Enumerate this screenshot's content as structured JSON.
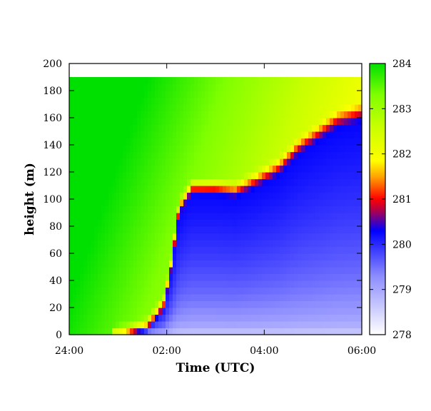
{
  "chart_data": {
    "type": "heatmap",
    "title": "",
    "xlabel": "Time (UTC)",
    "ylabel": "height (m)",
    "x_ticks": [
      "24:00",
      "02:00",
      "04:00",
      "06:00"
    ],
    "x_range_hours": [
      0,
      6
    ],
    "y_ticks": [
      "0",
      "20",
      "40",
      "60",
      "80",
      "100",
      "120",
      "140",
      "160",
      "180",
      "200"
    ],
    "ylim": [
      0,
      200
    ],
    "data_top_height": 190,
    "colorbar": {
      "ticks": [
        "278",
        "279",
        "280",
        "281",
        "282",
        "283",
        "284"
      ],
      "range": [
        278,
        284
      ],
      "stops": [
        {
          "value": 278.0,
          "color": "#ffffff"
        },
        {
          "value": 279.3,
          "color": "#8c8cff"
        },
        {
          "value": 280.3,
          "color": "#0000ff"
        },
        {
          "value": 280.75,
          "color": "#b0004a"
        },
        {
          "value": 281.0,
          "color": "#ff0000"
        },
        {
          "value": 281.5,
          "color": "#ffa500"
        },
        {
          "value": 281.85,
          "color": "#ffff00"
        },
        {
          "value": 282.6,
          "color": "#c8ff00"
        },
        {
          "value": 283.3,
          "color": "#80ff00"
        },
        {
          "value": 284.0,
          "color": "#00e000"
        }
      ]
    },
    "series_note_values": "temperature field: inversion top height (m) vs time (h)",
    "inversion_top": {
      "t": [
        0,
        0.8,
        1.2,
        1.6,
        1.95,
        2.1,
        2.25,
        2.5,
        3.0,
        3.4,
        3.8,
        4.3,
        4.7,
        5.1,
        5.5,
        6.0
      ],
      "h": [
        0,
        0,
        3,
        8,
        25,
        55,
        95,
        110,
        110,
        108,
        115,
        125,
        140,
        150,
        160,
        165
      ]
    }
  }
}
